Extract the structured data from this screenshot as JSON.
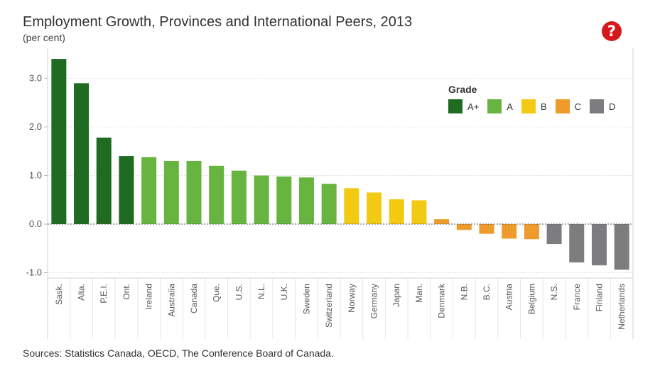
{
  "header": {
    "title": "Employment Growth, Provinces and International Peers, 2013",
    "subtitle": "(per cent)",
    "help_icon": "question-mark-icon"
  },
  "footer": {
    "source": "Sources: Statistics Canada, OECD, The Conference Board of Canada."
  },
  "legend": {
    "title": "Grade",
    "items": [
      {
        "label": "A+",
        "color": "#1e6b21"
      },
      {
        "label": "A",
        "color": "#67b540"
      },
      {
        "label": "B",
        "color": "#f2c913"
      },
      {
        "label": "C",
        "color": "#ee9b2b"
      },
      {
        "label": "D",
        "color": "#7d7d80"
      }
    ]
  },
  "chart_data": {
    "type": "bar",
    "title": "Employment Growth, Provinces and International Peers, 2013",
    "subtitle": "(per cent)",
    "xlabel": "",
    "ylabel": "",
    "ylim": [
      -1.1,
      3.5
    ],
    "yticks": [
      "3.0",
      "2.0",
      "1.0",
      "0.0",
      "-1.0"
    ],
    "ytick_values": [
      3.0,
      2.0,
      1.0,
      0.0,
      -1.0
    ],
    "grid": true,
    "legend_position": "top-right",
    "categories": [
      "Sask.",
      "Alta.",
      "P.E.I.",
      "Ont.",
      "Ireland",
      "Australia",
      "Canada",
      "Que.",
      "U.S.",
      "N.L.",
      "U.K.",
      "Sweden",
      "Switzerland",
      "Norway",
      "Germany",
      "Japan",
      "Man.",
      "Denmark",
      "N.B.",
      "B.C.",
      "Austria",
      "Belgium",
      "N.S.",
      "France",
      "Finland",
      "Netherlands"
    ],
    "values": [
      3.4,
      2.9,
      1.78,
      1.4,
      1.38,
      1.3,
      1.3,
      1.2,
      1.1,
      1.0,
      0.98,
      0.96,
      0.83,
      0.74,
      0.65,
      0.51,
      0.49,
      0.1,
      -0.12,
      -0.2,
      -0.3,
      -0.31,
      -0.41,
      -0.79,
      -0.85,
      -0.94
    ],
    "grades": [
      "A+",
      "A+",
      "A+",
      "A+",
      "A",
      "A",
      "A",
      "A",
      "A",
      "A",
      "A",
      "A",
      "A",
      "B",
      "B",
      "B",
      "B",
      "C",
      "C",
      "C",
      "C",
      "C",
      "D",
      "D",
      "D",
      "D"
    ]
  }
}
